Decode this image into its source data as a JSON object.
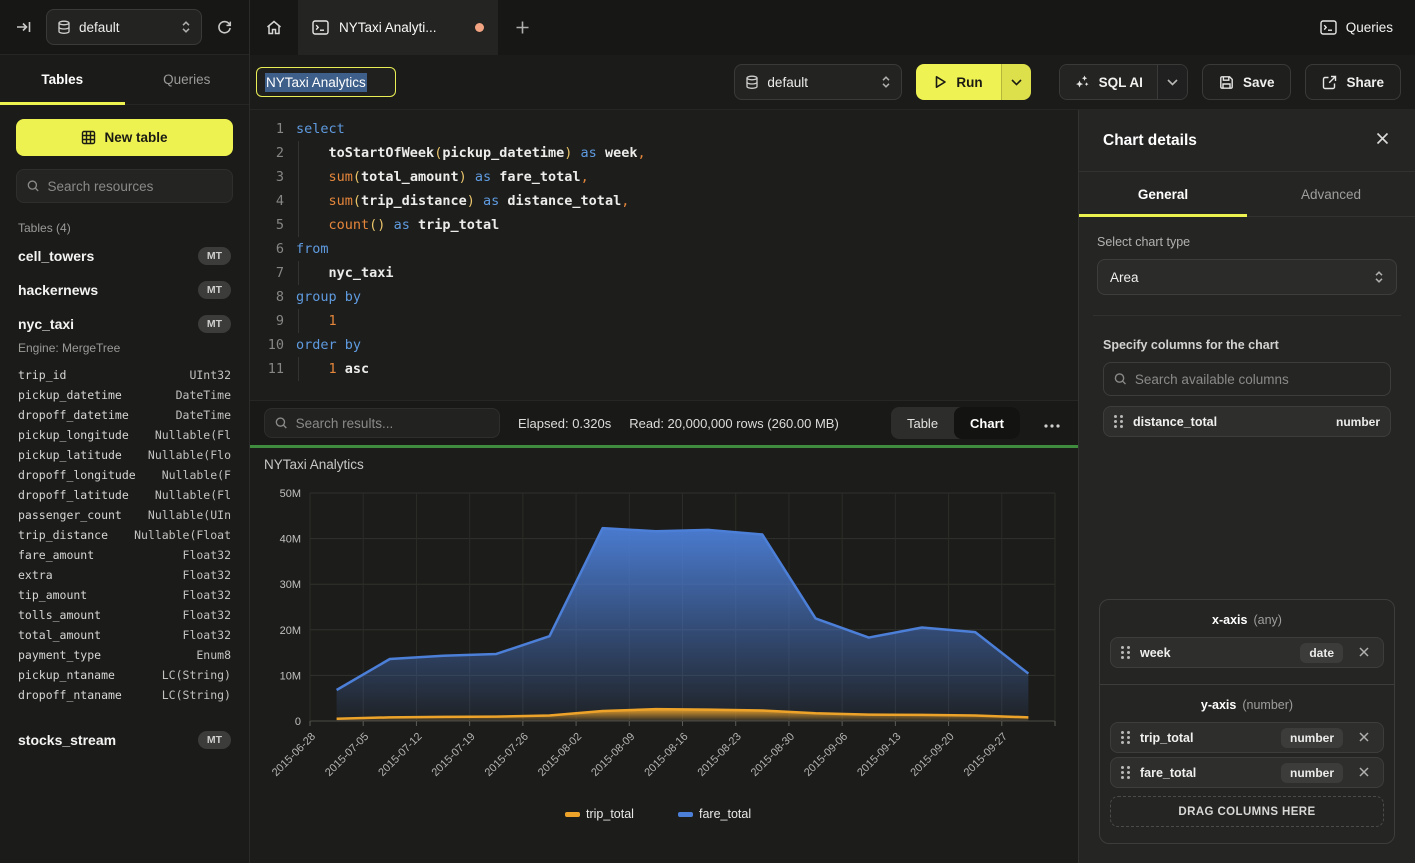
{
  "topbar": {
    "database": "default",
    "active_tab_label": "NYTaxi Analyti...",
    "queries_label": "Queries"
  },
  "sidebar": {
    "tabs": [
      {
        "label": "Tables",
        "active": true
      },
      {
        "label": "Queries",
        "active": false
      }
    ],
    "new_table_label": "New table",
    "search_placeholder": "Search resources",
    "section_label": "Tables (4)",
    "tables": [
      {
        "name": "cell_towers",
        "badge": "MT"
      },
      {
        "name": "hackernews",
        "badge": "MT"
      },
      {
        "name": "nyc_taxi",
        "badge": "MT",
        "engine": "Engine: MergeTree",
        "columns": [
          [
            "trip_id",
            "UInt32"
          ],
          [
            "pickup_datetime",
            "DateTime"
          ],
          [
            "dropoff_datetime",
            "DateTime"
          ],
          [
            "pickup_longitude",
            "Nullable(Fl"
          ],
          [
            "pickup_latitude",
            "Nullable(Flo"
          ],
          [
            "dropoff_longitude",
            "Nullable(F"
          ],
          [
            "dropoff_latitude",
            "Nullable(Fl"
          ],
          [
            "passenger_count",
            "Nullable(UIn"
          ],
          [
            "trip_distance",
            "Nullable(Float"
          ],
          [
            "fare_amount",
            "Float32"
          ],
          [
            "extra",
            "Float32"
          ],
          [
            "tip_amount",
            "Float32"
          ],
          [
            "tolls_amount",
            "Float32"
          ],
          [
            "total_amount",
            "Float32"
          ],
          [
            "payment_type",
            "Enum8"
          ],
          [
            "pickup_ntaname",
            "LC(String)"
          ],
          [
            "dropoff_ntaname",
            "LC(String)"
          ]
        ]
      },
      {
        "name": "stocks_stream",
        "badge": "MT"
      }
    ]
  },
  "toolbar": {
    "query_title": "NYTaxi Analytics",
    "database": "default",
    "run_label": "Run",
    "sql_ai_label": "SQL AI",
    "save_label": "Save",
    "share_label": "Share"
  },
  "editor": {
    "lines": [
      {
        "n": "1",
        "tokens": [
          [
            "select",
            "kw"
          ]
        ]
      },
      {
        "n": "2",
        "tokens": [
          [
            "    ",
            "pl"
          ],
          [
            "toStartOfWeek",
            "fnb"
          ],
          [
            "(",
            "pa"
          ],
          [
            "pickup_datetime",
            "id"
          ],
          [
            ")",
            "pa"
          ],
          [
            " ",
            "pl"
          ],
          [
            "as",
            "kw"
          ],
          [
            " ",
            "pl"
          ],
          [
            "week",
            "id"
          ],
          [
            ",",
            "cm"
          ]
        ]
      },
      {
        "n": "3",
        "tokens": [
          [
            "    ",
            "pl"
          ],
          [
            "sum",
            "fn"
          ],
          [
            "(",
            "pa"
          ],
          [
            "total_amount",
            "id"
          ],
          [
            ")",
            "pa"
          ],
          [
            " ",
            "pl"
          ],
          [
            "as",
            "kw"
          ],
          [
            " ",
            "pl"
          ],
          [
            "fare_total",
            "id"
          ],
          [
            ",",
            "cm"
          ]
        ]
      },
      {
        "n": "4",
        "tokens": [
          [
            "    ",
            "pl"
          ],
          [
            "sum",
            "fn"
          ],
          [
            "(",
            "pa"
          ],
          [
            "trip_distance",
            "id"
          ],
          [
            ")",
            "pa"
          ],
          [
            " ",
            "pl"
          ],
          [
            "as",
            "kw"
          ],
          [
            " ",
            "pl"
          ],
          [
            "distance_total",
            "id"
          ],
          [
            ",",
            "cm"
          ]
        ]
      },
      {
        "n": "5",
        "tokens": [
          [
            "    ",
            "pl"
          ],
          [
            "count",
            "fn"
          ],
          [
            "(",
            "pa"
          ],
          [
            ")",
            "pa"
          ],
          [
            " ",
            "pl"
          ],
          [
            "as",
            "kw"
          ],
          [
            " ",
            "pl"
          ],
          [
            "trip_total",
            "id"
          ]
        ]
      },
      {
        "n": "6",
        "tokens": [
          [
            "from",
            "kw"
          ]
        ]
      },
      {
        "n": "7",
        "tokens": [
          [
            "    ",
            "pl"
          ],
          [
            "nyc_taxi",
            "id"
          ]
        ]
      },
      {
        "n": "8",
        "tokens": [
          [
            "group by",
            "kw"
          ]
        ]
      },
      {
        "n": "9",
        "tokens": [
          [
            "    ",
            "pl"
          ],
          [
            "1",
            "num"
          ]
        ]
      },
      {
        "n": "10",
        "tokens": [
          [
            "order by",
            "kw"
          ]
        ]
      },
      {
        "n": "11",
        "tokens": [
          [
            "    ",
            "pl"
          ],
          [
            "1",
            "num"
          ],
          [
            " ",
            "pl"
          ],
          [
            "asc",
            "id"
          ]
        ]
      }
    ]
  },
  "results": {
    "search_placeholder": "Search results...",
    "elapsed": "Elapsed: 0.320s",
    "read": "Read: 20,000,000 rows (260.00 MB)",
    "views": [
      {
        "label": "Table",
        "active": false
      },
      {
        "label": "Chart",
        "active": true
      }
    ]
  },
  "chart_data": {
    "type": "area",
    "title": "NYTaxi Analytics",
    "categories": [
      "2015-06-28",
      "2015-07-05",
      "2015-07-12",
      "2015-07-19",
      "2015-07-26",
      "2015-08-02",
      "2015-08-09",
      "2015-08-16",
      "2015-08-23",
      "2015-08-30",
      "2015-09-06",
      "2015-09-13",
      "2015-09-20",
      "2015-09-27"
    ],
    "series": [
      {
        "name": "trip_total",
        "color": "#eda32a",
        "values": [
          500000,
          800000,
          900000,
          950000,
          1200000,
          2200000,
          2600000,
          2500000,
          2300000,
          1700000,
          1400000,
          1350000,
          1200000,
          800000
        ]
      },
      {
        "name": "fare_total",
        "color": "#4c7fd8",
        "values": [
          6800000,
          13600000,
          14300000,
          14700000,
          18600000,
          42300000,
          41600000,
          41900000,
          40900000,
          22500000,
          18300000,
          20500000,
          19500000,
          10400000
        ]
      }
    ],
    "ylim": [
      0,
      50000000
    ],
    "yticks": [
      "0",
      "10M",
      "20M",
      "30M",
      "40M",
      "50M"
    ],
    "legend": [
      "trip_total",
      "fare_total"
    ],
    "legend_position": "bottom",
    "grid": true
  },
  "chart_panel": {
    "title": "Chart details",
    "tabs": [
      {
        "label": "General",
        "active": true
      },
      {
        "label": "Advanced",
        "active": false
      }
    ],
    "chart_type_label": "Select chart type",
    "chart_type_value": "Area",
    "columns_label": "Specify columns for the chart",
    "search_placeholder": "Search available columns",
    "available_columns": [
      {
        "name": "distance_total",
        "type": "number"
      }
    ],
    "x_axis": {
      "title": "x-axis",
      "constraint": "(any)",
      "columns": [
        {
          "name": "week",
          "type": "date"
        }
      ]
    },
    "y_axis": {
      "title": "y-axis",
      "constraint": "(number)",
      "columns": [
        {
          "name": "trip_total",
          "type": "number"
        },
        {
          "name": "fare_total",
          "type": "number"
        }
      ]
    },
    "drop_zone_label": "DRAG COLUMNS HERE"
  }
}
